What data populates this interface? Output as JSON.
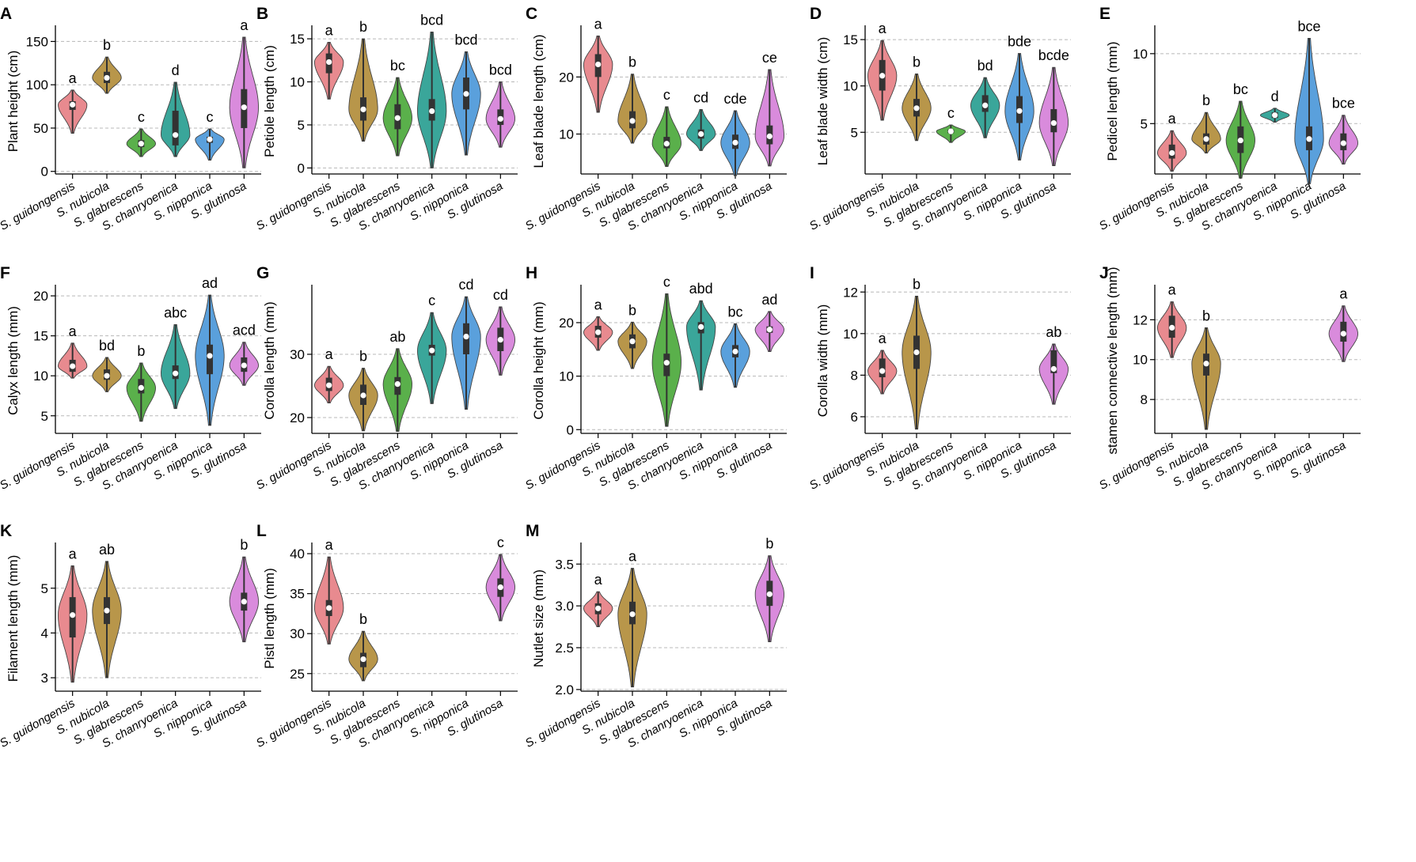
{
  "species": [
    "S. guidongensis",
    "S. nubicola",
    "S. glabrescens",
    "S. chanryoenica",
    "S. nipponica",
    "S. glutinosa"
  ],
  "colors": [
    "#e88a8f",
    "#b8964a",
    "#5ab04b",
    "#3aa69a",
    "#5aa0dc",
    "#d98bdc"
  ],
  "chart_data": [
    {
      "type": "violin",
      "panel": "A",
      "ylabel": "Plant height (cm)",
      "ylim": [
        -3,
        165
      ],
      "yticks": [
        0,
        50,
        100,
        150
      ],
      "letters": [
        "a",
        "b",
        "c",
        "d",
        "c",
        "a"
      ],
      "series": [
        {
          "median": 77,
          "q1": 71,
          "q3": 81,
          "min": 44,
          "max": 94
        },
        {
          "median": 108,
          "q1": 102,
          "q3": 115,
          "min": 90,
          "max": 132
        },
        {
          "median": 32,
          "q1": 28,
          "q3": 36,
          "min": 17,
          "max": 49
        },
        {
          "median": 42,
          "q1": 30,
          "q3": 70,
          "min": 17,
          "max": 103
        },
        {
          "median": 37,
          "q1": 33,
          "q3": 40,
          "min": 13,
          "max": 49
        },
        {
          "median": 74,
          "q1": 50,
          "q3": 95,
          "min": 4,
          "max": 155
        }
      ]
    },
    {
      "type": "violin",
      "panel": "B",
      "ylabel": "Petiole length (cm)",
      "ylim": [
        -0.7,
        16.2
      ],
      "yticks": [
        0,
        5,
        10,
        15
      ],
      "letters": [
        "a",
        "b",
        "bc",
        "bcd",
        "bcd",
        "bcd"
      ],
      "series": [
        {
          "median": 12.3,
          "q1": 11,
          "q3": 13.3,
          "min": 8,
          "max": 14.6
        },
        {
          "median": 6.8,
          "q1": 5.5,
          "q3": 8.2,
          "min": 3.1,
          "max": 15
        },
        {
          "median": 5.8,
          "q1": 4.5,
          "q3": 7.4,
          "min": 1.4,
          "max": 10.5
        },
        {
          "median": 6.6,
          "q1": 5.5,
          "q3": 8,
          "min": 0,
          "max": 15.8
        },
        {
          "median": 8.6,
          "q1": 6.8,
          "q3": 10.5,
          "min": 1.5,
          "max": 13.5
        },
        {
          "median": 5.7,
          "q1": 5,
          "q3": 6.8,
          "min": 2.4,
          "max": 10
        }
      ]
    },
    {
      "type": "violin",
      "panel": "C",
      "ylabel": "Leaf blade length (cm)",
      "ylim": [
        3,
        28.5
      ],
      "yticks": [
        10,
        20
      ],
      "letters": [
        "a",
        "b",
        "c",
        "cd",
        "cde",
        "ce"
      ],
      "series": [
        {
          "median": 22.2,
          "q1": 20,
          "q3": 24,
          "min": 13.8,
          "max": 27.2
        },
        {
          "median": 12.3,
          "q1": 11,
          "q3": 14,
          "min": 8.4,
          "max": 20.5
        },
        {
          "median": 8.3,
          "q1": 7.5,
          "q3": 9.5,
          "min": 4.3,
          "max": 14.8
        },
        {
          "median": 10,
          "q1": 9.2,
          "q3": 10.8,
          "min": 7.1,
          "max": 14.3
        },
        {
          "median": 8.5,
          "q1": 7.4,
          "q3": 9.9,
          "min": 2.7,
          "max": 14.1
        },
        {
          "median": 9.6,
          "q1": 8.2,
          "q3": 11.5,
          "min": 4.4,
          "max": 21.3
        }
      ]
    },
    {
      "type": "violin",
      "panel": "D",
      "ylabel": "Leaf blade width (cm)",
      "ylim": [
        0.5,
        16.2
      ],
      "yticks": [
        5,
        10,
        15
      ],
      "letters": [
        "a",
        "b",
        "c",
        "bd",
        "bde",
        "bcde"
      ],
      "series": [
        {
          "median": 11.1,
          "q1": 9.5,
          "q3": 12.8,
          "min": 6.3,
          "max": 14.9
        },
        {
          "median": 7.6,
          "q1": 6.7,
          "q3": 8.6,
          "min": 4.1,
          "max": 11.3
        },
        {
          "median": 5.1,
          "q1": 4.9,
          "q3": 5.3,
          "min": 3.9,
          "max": 5.8
        },
        {
          "median": 7.9,
          "q1": 7.2,
          "q3": 9,
          "min": 4.4,
          "max": 10.9
        },
        {
          "median": 7.3,
          "q1": 6,
          "q3": 8.9,
          "min": 2,
          "max": 13.5
        },
        {
          "median": 6,
          "q1": 5,
          "q3": 7.5,
          "min": 1.4,
          "max": 12
        }
      ]
    },
    {
      "type": "violin",
      "panel": "E",
      "ylabel": "Pedicel length (mm)",
      "ylim": [
        1.4,
        11.8
      ],
      "yticks": [
        5,
        10
      ],
      "letters": [
        "a",
        "b",
        "bc",
        "d",
        "bce",
        "bce"
      ],
      "series": [
        {
          "median": 2.9,
          "q1": 2.5,
          "q3": 3.5,
          "min": 1.6,
          "max": 4.5
        },
        {
          "median": 3.9,
          "q1": 3.5,
          "q3": 4.3,
          "min": 2.9,
          "max": 5.8
        },
        {
          "median": 3.8,
          "q1": 2.9,
          "q3": 4.8,
          "min": 1.1,
          "max": 6.6
        },
        {
          "median": 5.6,
          "q1": 5.4,
          "q3": 5.8,
          "min": 5.1,
          "max": 6.1
        },
        {
          "median": 3.9,
          "q1": 3.1,
          "q3": 4.8,
          "min": 0.7,
          "max": 11.1
        },
        {
          "median": 3.6,
          "q1": 3.1,
          "q3": 4.3,
          "min": 2.1,
          "max": 5.6
        }
      ]
    },
    {
      "type": "violin",
      "panel": "F",
      "ylabel": "Calyx length (mm)",
      "ylim": [
        2.8,
        21
      ],
      "yticks": [
        5,
        10,
        15,
        20
      ],
      "letters": [
        "a",
        "bd",
        "b",
        "abc",
        "ad",
        "acd"
      ],
      "series": [
        {
          "median": 11.2,
          "q1": 10.5,
          "q3": 12,
          "min": 9.7,
          "max": 14.1
        },
        {
          "median": 10,
          "q1": 9.5,
          "q3": 10.8,
          "min": 8,
          "max": 12.3
        },
        {
          "median": 8.5,
          "q1": 7.8,
          "q3": 9.6,
          "min": 4.3,
          "max": 11.6
        },
        {
          "median": 10.3,
          "q1": 9.6,
          "q3": 11.3,
          "min": 5.9,
          "max": 16.4
        },
        {
          "median": 12.5,
          "q1": 10.2,
          "q3": 13.9,
          "min": 3.8,
          "max": 20.1
        },
        {
          "median": 11.3,
          "q1": 10.5,
          "q3": 12.3,
          "min": 8.8,
          "max": 14.2
        }
      ]
    },
    {
      "type": "violin",
      "panel": "G",
      "ylabel": "Corolla length (mm)",
      "ylim": [
        17.5,
        40.5
      ],
      "yticks": [
        20,
        30
      ],
      "letters": [
        "a",
        "b",
        "ab",
        "c",
        "cd",
        "cd"
      ],
      "series": [
        {
          "median": 25.1,
          "q1": 24.2,
          "q3": 26.3,
          "min": 22.3,
          "max": 28.1
        },
        {
          "median": 23.5,
          "q1": 22,
          "q3": 25.2,
          "min": 17.9,
          "max": 27.8
        },
        {
          "median": 25.3,
          "q1": 23.6,
          "q3": 26.4,
          "min": 17.8,
          "max": 30.9
        },
        {
          "median": 30.6,
          "q1": 29.8,
          "q3": 31.5,
          "min": 22.2,
          "max": 36.6
        },
        {
          "median": 32.8,
          "q1": 30,
          "q3": 34.9,
          "min": 21.3,
          "max": 39.1
        },
        {
          "median": 32.3,
          "q1": 30.5,
          "q3": 34.2,
          "min": 26.7,
          "max": 37.5
        }
      ]
    },
    {
      "type": "violin",
      "panel": "H",
      "ylabel": "Corolla height (mm)",
      "ylim": [
        -0.7,
        26.5
      ],
      "yticks": [
        0,
        10,
        20
      ],
      "letters": [
        "a",
        "b",
        "c",
        "abd",
        "bc",
        "ad"
      ],
      "series": [
        {
          "median": 18.2,
          "q1": 17.2,
          "q3": 19.4,
          "min": 14.8,
          "max": 21.1
        },
        {
          "median": 16.5,
          "q1": 15.2,
          "q3": 17.8,
          "min": 11.4,
          "max": 20.1
        },
        {
          "median": 12.5,
          "q1": 10,
          "q3": 14.2,
          "min": 0.6,
          "max": 25.4
        },
        {
          "median": 19.2,
          "q1": 18,
          "q3": 20.1,
          "min": 7.4,
          "max": 24.1
        },
        {
          "median": 14.6,
          "q1": 13.5,
          "q3": 15.8,
          "min": 7.9,
          "max": 19.8
        },
        {
          "median": 18.7,
          "q1": 18.1,
          "q3": 19.3,
          "min": 14.6,
          "max": 22.1
        }
      ]
    },
    {
      "type": "violin",
      "panel": "I",
      "ylabel": "Corolla width (mm)",
      "ylim": [
        5.2,
        12.2
      ],
      "yticks": [
        6,
        8,
        10,
        12
      ],
      "letters": [
        "a",
        "b",
        "",
        "",
        "",
        "ab"
      ],
      "series": [
        {
          "median": 8.2,
          "q1": 7.9,
          "q3": 8.8,
          "min": 7.1,
          "max": 9.2
        },
        {
          "median": 9.1,
          "q1": 8.3,
          "q3": 9.9,
          "min": 5.4,
          "max": 11.8
        },
        null,
        null,
        null,
        {
          "median": 8.3,
          "q1": 8.1,
          "q3": 9.2,
          "min": 6.6,
          "max": 9.5
        }
      ]
    },
    {
      "type": "violin",
      "panel": "J",
      "ylabel": "stamen connective length (mm)",
      "ylim": [
        6.3,
        13.6
      ],
      "yticks": [
        8,
        10,
        12
      ],
      "letters": [
        "a",
        "b",
        "",
        "",
        "",
        "a"
      ],
      "series": [
        {
          "median": 11.6,
          "q1": 11.1,
          "q3": 12.2,
          "min": 10.1,
          "max": 12.9
        },
        {
          "median": 9.8,
          "q1": 9.2,
          "q3": 10.3,
          "min": 6.5,
          "max": 11.6
        },
        null,
        null,
        null,
        {
          "median": 11.3,
          "q1": 10.9,
          "q3": 11.9,
          "min": 9.9,
          "max": 12.7
        }
      ]
    },
    {
      "type": "violin",
      "panel": "K",
      "ylabel": "Filament length (mm)",
      "ylim": [
        2.7,
        5.95
      ],
      "yticks": [
        3,
        4,
        5
      ],
      "letters": [
        "a",
        "ab",
        "",
        "",
        "",
        "b"
      ],
      "series": [
        {
          "median": 4.4,
          "q1": 3.9,
          "q3": 4.8,
          "min": 2.9,
          "max": 5.5
        },
        {
          "median": 4.5,
          "q1": 4.2,
          "q3": 4.8,
          "min": 3,
          "max": 5.6
        },
        null,
        null,
        null,
        {
          "median": 4.7,
          "q1": 4.5,
          "q3": 4.9,
          "min": 3.8,
          "max": 5.7
        }
      ]
    },
    {
      "type": "violin",
      "panel": "L",
      "ylabel": "Pistl length (mm)",
      "ylim": [
        22.8,
        41
      ],
      "yticks": [
        25,
        30,
        35,
        40
      ],
      "letters": [
        "a",
        "b",
        "",
        "",
        "",
        "c"
      ],
      "series": [
        {
          "median": 33.2,
          "q1": 32.2,
          "q3": 34.2,
          "min": 28.7,
          "max": 39.6
        },
        {
          "median": 26.8,
          "q1": 25.8,
          "q3": 27.6,
          "min": 24.1,
          "max": 30.3
        },
        null,
        null,
        null,
        {
          "median": 35.8,
          "q1": 34.6,
          "q3": 36.9,
          "min": 31.6,
          "max": 39.9
        }
      ]
    },
    {
      "type": "violin",
      "panel": "M",
      "ylabel": "Nutlet size (mm)",
      "ylim": [
        1.98,
        3.72
      ],
      "yticks": [
        2.0,
        2.5,
        3.0,
        3.5
      ],
      "letters": [
        "a",
        "a",
        "",
        "",
        "",
        "b"
      ],
      "series": [
        {
          "median": 2.97,
          "q1": 2.9,
          "q3": 3.03,
          "min": 2.75,
          "max": 3.17
        },
        {
          "median": 2.9,
          "q1": 2.78,
          "q3": 3.05,
          "min": 2.03,
          "max": 3.45
        },
        null,
        null,
        null,
        {
          "median": 3.14,
          "q1": 3.0,
          "q3": 3.3,
          "min": 2.57,
          "max": 3.6
        }
      ]
    }
  ]
}
